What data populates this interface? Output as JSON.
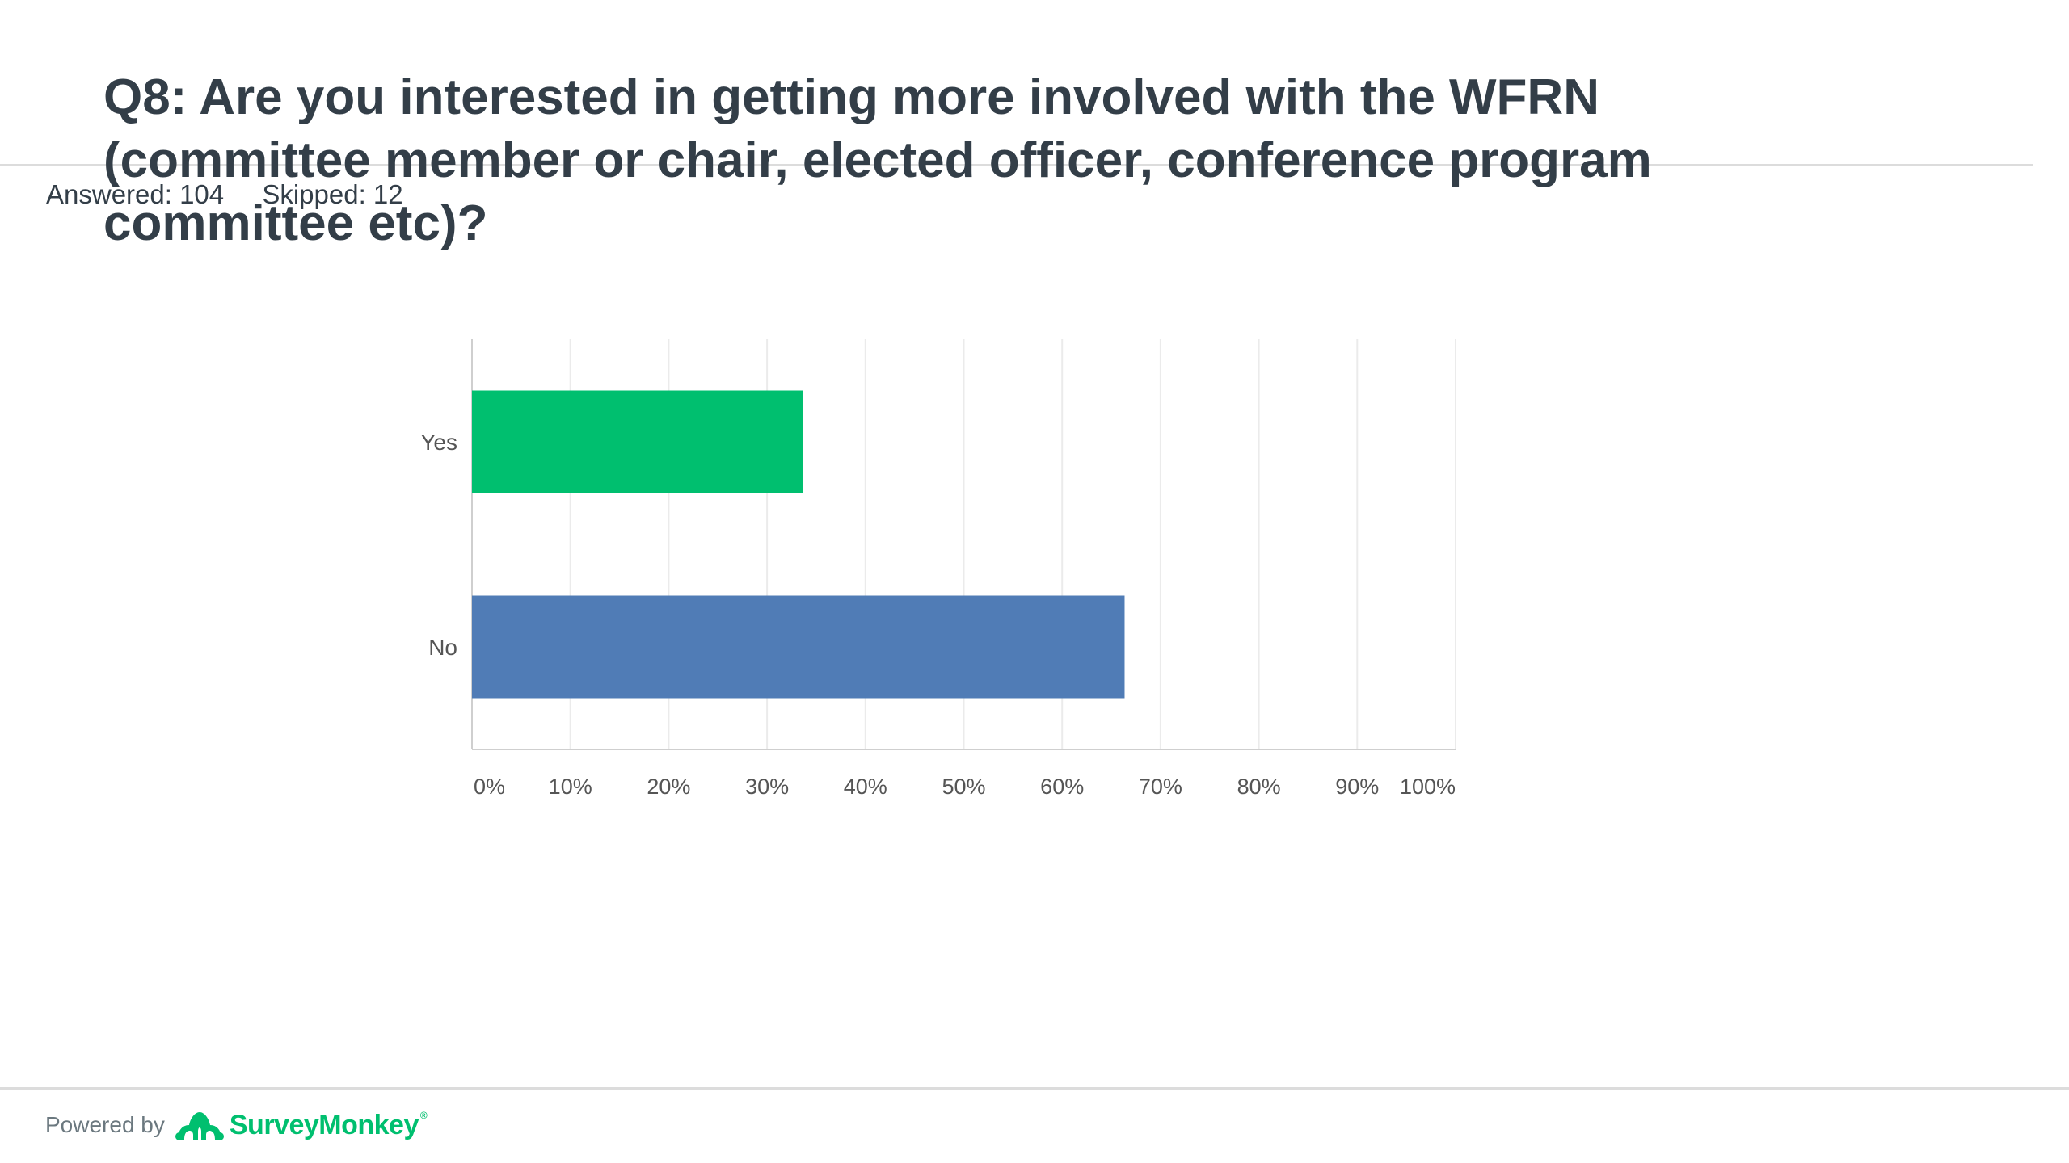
{
  "question": {
    "title": "Q8: Are you interested in getting more involved with the WFRN (committee member or chair, elected officer, conference program committee etc)?",
    "answered": "Answered: 104",
    "skipped": "Skipped: 12"
  },
  "chart_data": {
    "type": "bar",
    "orientation": "horizontal",
    "categories": [
      "Yes",
      "No"
    ],
    "values": [
      33.65,
      66.35
    ],
    "x_ticks": [
      "0%",
      "10%",
      "20%",
      "30%",
      "40%",
      "50%",
      "60%",
      "70%",
      "80%",
      "90%",
      "100%"
    ],
    "xlim": [
      0,
      100
    ],
    "bar_colors": [
      "#00bf6f",
      "#507cb6"
    ],
    "grid": true,
    "legend": "none"
  },
  "footer": {
    "powered_by": "Powered by",
    "brand": "SurveyMonkey",
    "brand_color": "#00bf6f",
    "logo_icon": "surveymonkey-logo-icon"
  }
}
